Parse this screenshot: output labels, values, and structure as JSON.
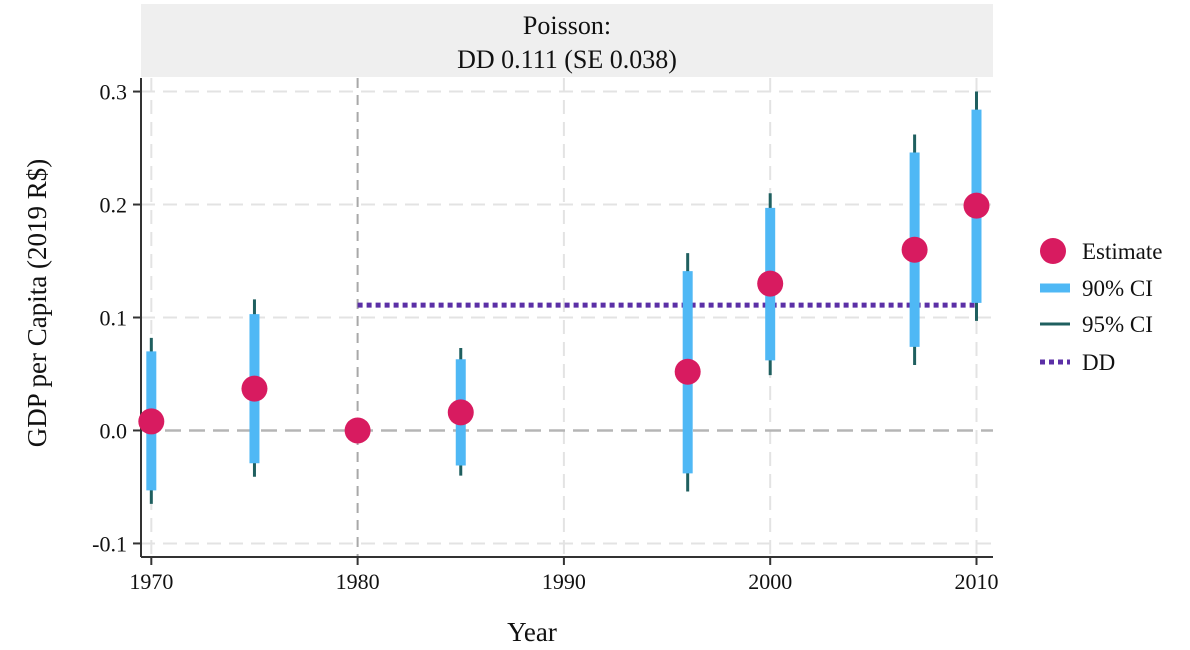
{
  "chart_data": {
    "type": "scatter",
    "panel_title": [
      "Poisson:",
      "DD 0.111 (SE 0.038)"
    ],
    "xlabel": "Year",
    "ylabel": "GDP per Capita (2019 R$)",
    "xlim": [
      1969.5,
      2010.8
    ],
    "ylim": [
      -0.112,
      0.312
    ],
    "x_ticks": [
      1970,
      1980,
      1990,
      2000,
      2010
    ],
    "x_tick_labels": [
      "1970",
      "1980",
      "1990",
      "2000",
      "2010"
    ],
    "y_ticks": [
      -0.1,
      0.0,
      0.1,
      0.2,
      0.3
    ],
    "y_tick_labels": [
      "-0.1",
      "0.0",
      "0.1",
      "0.2",
      "0.3"
    ],
    "grid": true,
    "reference_lines": {
      "y_zero": 0.0,
      "x_event": 1980
    },
    "legend_position": "right",
    "legend": [
      {
        "key": "estimate",
        "label": "Estimate"
      },
      {
        "key": "ci90",
        "label": "90% CI"
      },
      {
        "key": "ci95",
        "label": "95% CI"
      },
      {
        "key": "dd",
        "label": "DD"
      }
    ],
    "colors": {
      "estimate": "#d81b60",
      "ci90": "#4fb8f5",
      "ci95": "#1f5f5f",
      "dd": "#5b2fa6",
      "panel": "#efefef"
    },
    "points": [
      {
        "x": 1970,
        "estimate": 0.008,
        "ci90": [
          -0.053,
          0.07
        ],
        "ci95": [
          -0.065,
          0.082
        ]
      },
      {
        "x": 1975,
        "estimate": 0.037,
        "ci90": [
          -0.029,
          0.103
        ],
        "ci95": [
          -0.041,
          0.116
        ]
      },
      {
        "x": 1980,
        "estimate": 0.0
      },
      {
        "x": 1985,
        "estimate": 0.016,
        "ci90": [
          -0.031,
          0.063
        ],
        "ci95": [
          -0.04,
          0.073
        ]
      },
      {
        "x": 1996,
        "estimate": 0.052,
        "ci90": [
          -0.038,
          0.141
        ],
        "ci95": [
          -0.054,
          0.157
        ]
      },
      {
        "x": 2000,
        "estimate": 0.13,
        "ci90": [
          0.062,
          0.197
        ],
        "ci95": [
          0.049,
          0.21
        ]
      },
      {
        "x": 2007,
        "estimate": 0.16,
        "ci90": [
          0.074,
          0.246
        ],
        "ci95": [
          0.058,
          0.262
        ]
      },
      {
        "x": 2010,
        "estimate": 0.199,
        "ci90": [
          0.113,
          0.284
        ],
        "ci95": [
          0.097,
          0.3
        ]
      }
    ],
    "dd": {
      "value": 0.111,
      "x_start": 1980,
      "x_end": 2010
    }
  }
}
